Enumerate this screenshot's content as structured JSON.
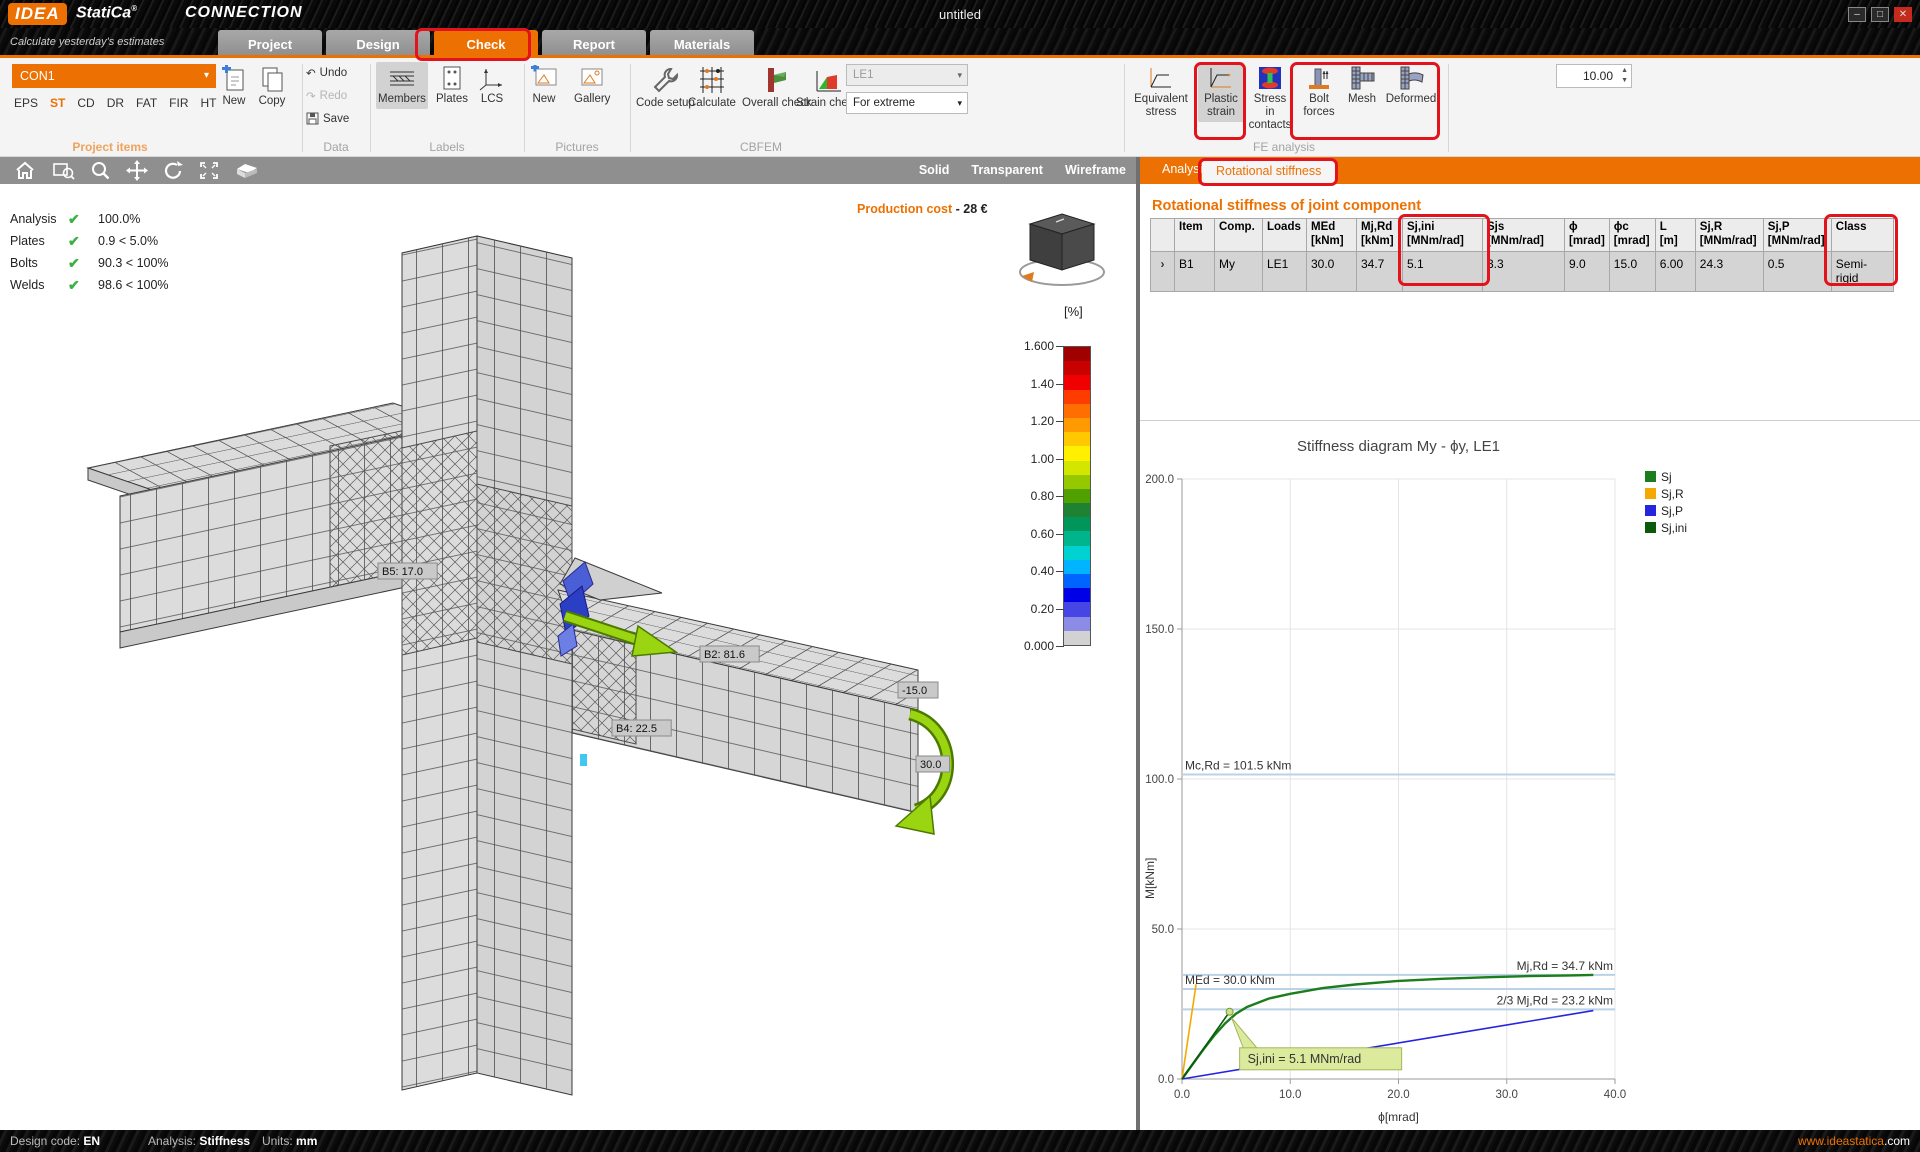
{
  "titlebar": {
    "brand": "IDEA",
    "brand2": "StatiCa",
    "reg": "®",
    "module": "CONNECTION",
    "document": "untitled",
    "window_buttons": {
      "minimize": "–",
      "maximize": "□",
      "close": "✕"
    }
  },
  "tabbar": {
    "tagline": "Calculate yesterday's estimates",
    "tabs": [
      {
        "label": "Project",
        "active": false
      },
      {
        "label": "Design",
        "active": false
      },
      {
        "label": "Check",
        "active": true,
        "annotated": true
      },
      {
        "label": "Report",
        "active": false
      },
      {
        "label": "Materials",
        "active": false
      }
    ],
    "info_button": "i"
  },
  "ribbon": {
    "project_items": {
      "selector_value": "CON1",
      "codes": [
        "EPS",
        "ST",
        "CD",
        "DR",
        "FAT",
        "FIR",
        "HT"
      ],
      "active_code": "ST",
      "group_label": "Project items"
    },
    "new_label": "New",
    "copy_label": "Copy",
    "data_group": {
      "undo": "Undo",
      "redo": "Redo",
      "save": "Save",
      "group_label": "Data"
    },
    "labels_group": {
      "members": "Members",
      "plates": "Plates",
      "lcs": "LCS",
      "selected": "Members",
      "group_label": "Labels"
    },
    "pictures_group": {
      "new": "New",
      "gallery": "Gallery",
      "group_label": "Pictures"
    },
    "cbfem_group": {
      "code_setup": "Code setup",
      "calculate": "Calculate",
      "overall_check": "Overall check",
      "strain_check": "Strain check",
      "load_case": "LE1",
      "extreme": "For extreme",
      "group_label": "CBFEM"
    },
    "fe_group": {
      "equivalent_stress": "Equivalent stress",
      "plastic_strain": "Plastic strain",
      "stress_contacts": "Stress in contacts",
      "bolt_forces": "Bolt forces",
      "mesh": "Mesh",
      "deformed": "Deformed",
      "spinner_value": "10.00",
      "group_label": "FE analysis"
    }
  },
  "viewport": {
    "view_modes": [
      "Solid",
      "Transparent",
      "Wireframe"
    ],
    "checks": [
      {
        "name": "Analysis",
        "mark": "✔",
        "value": "100.0%"
      },
      {
        "name": "Plates",
        "mark": "✔",
        "value": "0.9 < 5.0%"
      },
      {
        "name": "Bolts",
        "mark": "✔",
        "value": "90.3 < 100%"
      },
      {
        "name": "Welds",
        "mark": "✔",
        "value": "98.6 < 100%"
      }
    ],
    "production_cost_label": "Production cost",
    "production_cost_value": "-  28 €",
    "scale": {
      "unit": "[%]",
      "ticks": [
        "1.600",
        "1.40",
        "1.20",
        "1.00",
        "0.80",
        "0.60",
        "0.40",
        "0.20",
        "0.000"
      ],
      "colors": [
        "#a00000",
        "#c80000",
        "#f00000",
        "#ff3c00",
        "#ff6e00",
        "#ff9b00",
        "#ffc800",
        "#fff000",
        "#d2e600",
        "#96c800",
        "#50a000",
        "#1e8232",
        "#00965a",
        "#00b48c",
        "#00d2d2",
        "#00b4ff",
        "#0064ff",
        "#0000e6",
        "#4646e6",
        "#8c8ce6",
        "#d2d2d2"
      ]
    },
    "model_labels": [
      "B5: 17.0",
      "B2: 81.6",
      "B4: 22.5",
      "-15.0",
      "30.0"
    ]
  },
  "results_panel": {
    "tabs": [
      "Analysis",
      "Rotational stiffness"
    ],
    "active_tab": "Rotational stiffness",
    "heading": "Rotational stiffness of joint component",
    "table": {
      "headers": [
        {
          "name": "",
          "unit": ""
        },
        {
          "name": "Item",
          "unit": ""
        },
        {
          "name": "Comp.",
          "unit": ""
        },
        {
          "name": "Loads",
          "unit": ""
        },
        {
          "name": "MEd",
          "unit": "[kNm]"
        },
        {
          "name": "Mj,Rd",
          "unit": "[kNm]"
        },
        {
          "name": "Sj,ini",
          "unit": "[MNm/rad]"
        },
        {
          "name": "Sjs",
          "unit": "[MNm/rad]"
        },
        {
          "name": "ϕ",
          "unit": "[mrad]"
        },
        {
          "name": "ϕc",
          "unit": "[mrad]"
        },
        {
          "name": "L",
          "unit": "[m]"
        },
        {
          "name": "Sj,R",
          "unit": "[MNm/rad]"
        },
        {
          "name": "Sj,P",
          "unit": "[MNm/rad]"
        },
        {
          "name": "Class",
          "unit": ""
        }
      ],
      "row": [
        "›",
        "B1",
        "My",
        "LE1",
        "30.0",
        "34.7",
        "5.1",
        "3.3",
        "9.0",
        "15.0",
        "6.00",
        "24.3",
        "0.5",
        "Semi-rigid"
      ]
    }
  },
  "chart_data": {
    "type": "line",
    "title": "Stiffness diagram My - ϕy, LE1",
    "xlabel": "ϕ[mrad]",
    "ylabel": "M[kNm]",
    "xlim": [
      0,
      40
    ],
    "ylim": [
      0,
      200
    ],
    "xticks": [
      0,
      10,
      20,
      30,
      40
    ],
    "yticks": [
      0,
      50,
      100,
      150,
      200
    ],
    "grid": true,
    "legend_position": "right",
    "legend": [
      {
        "name": "Sj",
        "color": "#1b7d1b"
      },
      {
        "name": "Sj,R",
        "color": "#f5a800"
      },
      {
        "name": "Sj,P",
        "color": "#2525e0"
      },
      {
        "name": "Sj,ini",
        "color": "#0a5a0a"
      }
    ],
    "series": [
      {
        "name": "Sj",
        "color": "#1b7d1b",
        "width": 2.4,
        "points": [
          [
            0,
            0
          ],
          [
            1,
            5
          ],
          [
            2,
            10
          ],
          [
            3,
            14.6
          ],
          [
            4,
            18.6
          ],
          [
            5,
            21.8
          ],
          [
            6,
            24.0
          ],
          [
            8,
            26.8
          ],
          [
            10,
            28.4
          ],
          [
            13,
            30.3
          ],
          [
            16,
            31.5
          ],
          [
            20,
            32.7
          ],
          [
            24,
            33.4
          ],
          [
            28,
            33.9
          ],
          [
            32,
            34.3
          ],
          [
            36,
            34.55
          ],
          [
            38,
            34.7
          ]
        ]
      },
      {
        "name": "Sj,R",
        "color": "#f5a800",
        "width": 1.6,
        "points": [
          [
            0,
            0
          ],
          [
            1.3,
            31.6
          ]
        ]
      },
      {
        "name": "Sj,P",
        "color": "#2525e0",
        "width": 1.6,
        "points": [
          [
            0,
            0
          ],
          [
            38,
            22.8
          ]
        ]
      },
      {
        "name": "Sj,ini",
        "color": "#0a5a0a",
        "width": 1.6,
        "points": [
          [
            0,
            0
          ],
          [
            4.4,
            22.4
          ]
        ]
      }
    ],
    "reference_lines": [
      {
        "label": "Mc,Rd = 101.5 kNm",
        "y": 101.5,
        "align": "left"
      },
      {
        "label": "Mj,Rd = 34.7 kNm",
        "y": 34.7,
        "align": "right"
      },
      {
        "label": "MEd = 30.0 kNm",
        "y": 30.0,
        "align": "left"
      },
      {
        "label": "2/3 Mj,Rd = 23.2 kNm",
        "y": 23.2,
        "align": "right"
      }
    ],
    "annotation": {
      "label": "Sj,ini = 5.1 MNm/rad",
      "x": 4.4,
      "y": 22.4
    }
  },
  "statusbar": {
    "design_code_label": "Design code:",
    "design_code": "EN",
    "analysis_label": "Analysis:",
    "analysis": "Stiffness",
    "units_label": "Units:",
    "units": "mm",
    "website": "www.ideastatica",
    "website_tld": ".com"
  }
}
